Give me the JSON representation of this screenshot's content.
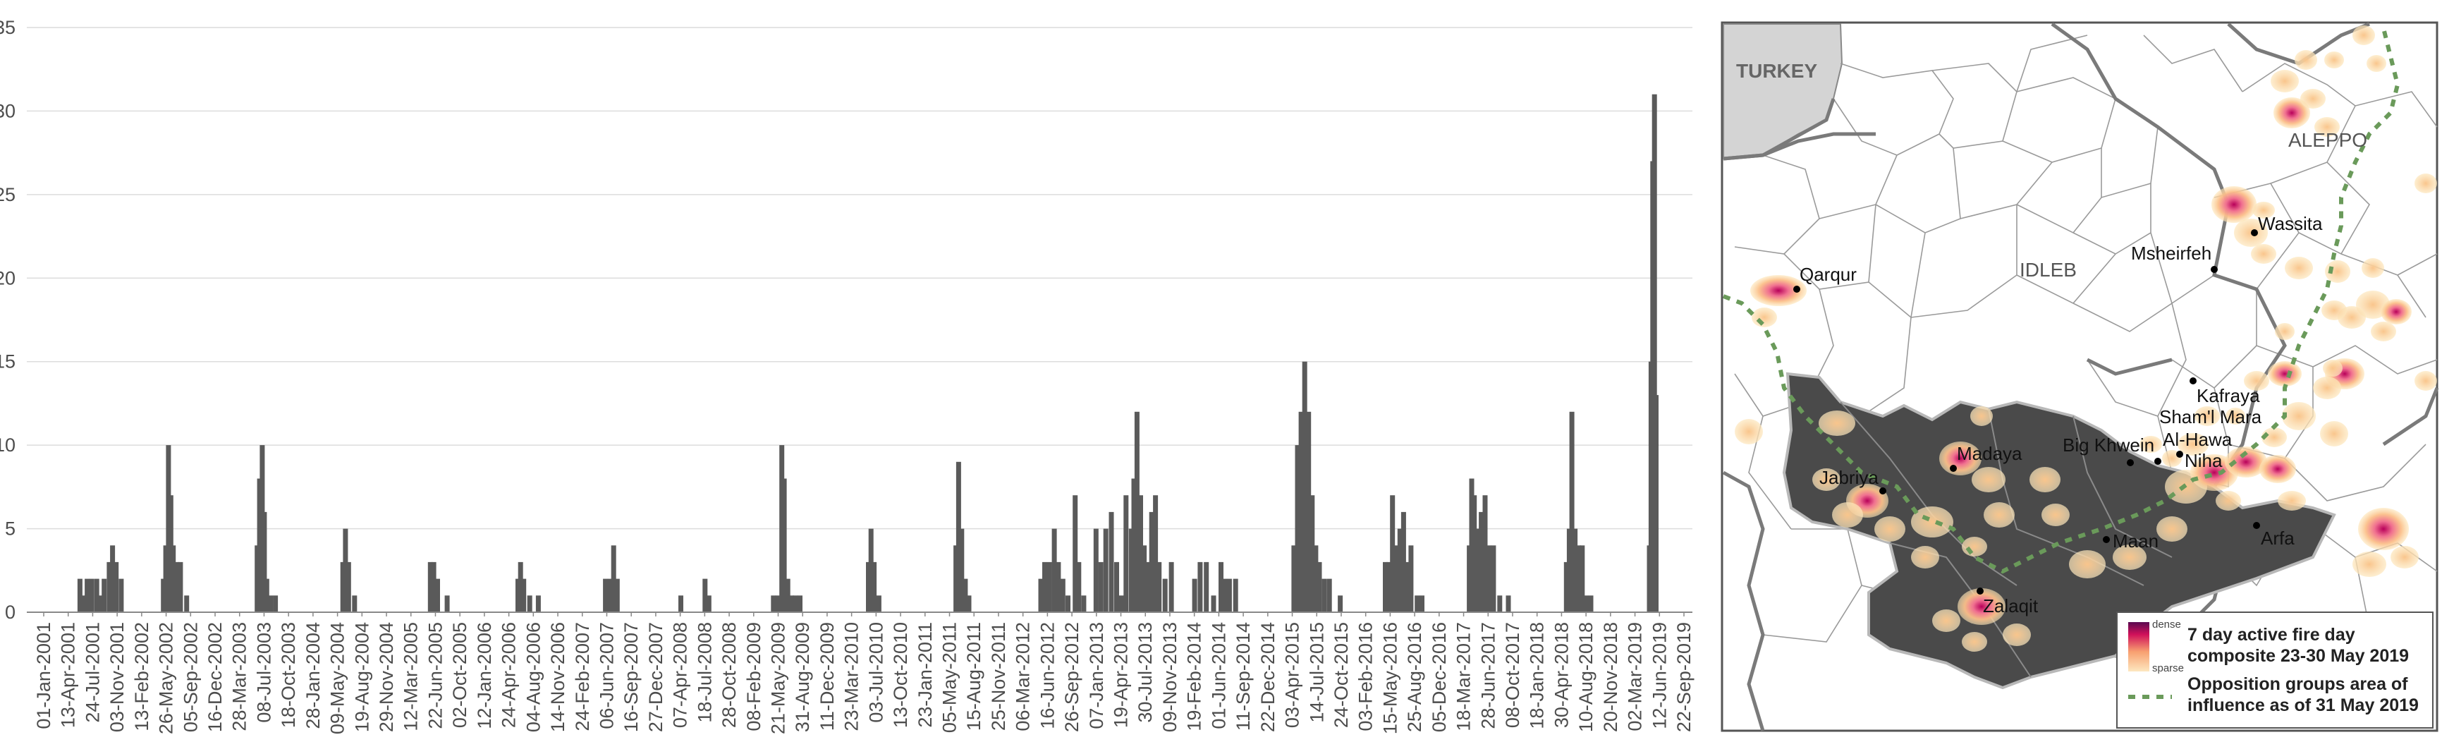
{
  "chart_data": {
    "type": "bar",
    "ylim": [
      0,
      35
    ],
    "yticks": [
      0,
      5,
      10,
      15,
      20,
      25,
      30,
      35
    ],
    "grid": true,
    "xtick_labels": [
      "01-Jan-2001",
      "13-Apr-2001",
      "24-Jul-2001",
      "03-Nov-2001",
      "13-Feb-2002",
      "26-May-2002",
      "05-Sep-2002",
      "16-Dec-2002",
      "28-Mar-2003",
      "08-Jul-2003",
      "18-Oct-2003",
      "28-Jan-2004",
      "09-May-2004",
      "19-Aug-2004",
      "29-Nov-2004",
      "12-Mar-2005",
      "22-Jun-2005",
      "02-Oct-2005",
      "12-Jan-2006",
      "24-Apr-2006",
      "04-Aug-2006",
      "14-Nov-2006",
      "24-Feb-2007",
      "06-Jun-2007",
      "16-Sep-2007",
      "27-Dec-2007",
      "07-Apr-2008",
      "18-Jul-2008",
      "28-Oct-2008",
      "08-Feb-2009",
      "21-May-2009",
      "31-Aug-2009",
      "11-Dec-2009",
      "23-Mar-2010",
      "03-Jul-2010",
      "13-Oct-2010",
      "23-Jan-2011",
      "05-May-2011",
      "15-Aug-2011",
      "25-Nov-2011",
      "06-Mar-2012",
      "16-Jun-2012",
      "26-Sep-2012",
      "07-Jan-2013",
      "19-Apr-2013",
      "30-Jul-2013",
      "09-Nov-2013",
      "19-Feb-2014",
      "01-Jun-2014",
      "11-Sep-2014",
      "22-Dec-2014",
      "03-Apr-2015",
      "14-Jul-2015",
      "24-Oct-2015",
      "03-Feb-2016",
      "15-May-2016",
      "25-Aug-2016",
      "05-Dec-2016",
      "18-Mar-2017",
      "28-Jun-2017",
      "08-Oct-2017",
      "18-Jan-2018",
      "30-Apr-2018",
      "10-Aug-2018",
      "20-Nov-2018",
      "02-Mar-2019",
      "12-Jun-2019",
      "22-Sep-2019"
    ],
    "x_start": "01-Jan-2001",
    "x_end": "22-Sep-2019",
    "bars": [
      {
        "x": "2001-06-01",
        "y": 2
      },
      {
        "x": "2001-06-15",
        "y": 1
      },
      {
        "x": "2001-07-01",
        "y": 2
      },
      {
        "x": "2001-07-20",
        "y": 2
      },
      {
        "x": "2001-08-10",
        "y": 2
      },
      {
        "x": "2001-08-25",
        "y": 1
      },
      {
        "x": "2001-09-10",
        "y": 2
      },
      {
        "x": "2001-10-01",
        "y": 3
      },
      {
        "x": "2001-10-15",
        "y": 4
      },
      {
        "x": "2001-10-30",
        "y": 3
      },
      {
        "x": "2001-11-20",
        "y": 2
      },
      {
        "x": "2002-05-15",
        "y": 2
      },
      {
        "x": "2002-05-25",
        "y": 4
      },
      {
        "x": "2002-06-05",
        "y": 10
      },
      {
        "x": "2002-06-15",
        "y": 7
      },
      {
        "x": "2002-06-25",
        "y": 4
      },
      {
        "x": "2002-07-10",
        "y": 3
      },
      {
        "x": "2002-07-25",
        "y": 3
      },
      {
        "x": "2002-08-20",
        "y": 1
      },
      {
        "x": "2003-06-10",
        "y": 4
      },
      {
        "x": "2003-06-20",
        "y": 8
      },
      {
        "x": "2003-07-01",
        "y": 10
      },
      {
        "x": "2003-07-10",
        "y": 6
      },
      {
        "x": "2003-07-20",
        "y": 2
      },
      {
        "x": "2003-08-05",
        "y": 1
      },
      {
        "x": "2003-08-25",
        "y": 1
      },
      {
        "x": "2004-06-01",
        "y": 3
      },
      {
        "x": "2004-06-12",
        "y": 5
      },
      {
        "x": "2004-06-25",
        "y": 3
      },
      {
        "x": "2004-07-20",
        "y": 1
      },
      {
        "x": "2005-06-01",
        "y": 3
      },
      {
        "x": "2005-06-15",
        "y": 3
      },
      {
        "x": "2005-07-01",
        "y": 2
      },
      {
        "x": "2005-08-10",
        "y": 1
      },
      {
        "x": "2006-06-01",
        "y": 2
      },
      {
        "x": "2006-06-12",
        "y": 3
      },
      {
        "x": "2006-06-25",
        "y": 2
      },
      {
        "x": "2006-07-20",
        "y": 1
      },
      {
        "x": "2006-08-25",
        "y": 1
      },
      {
        "x": "2007-06-01",
        "y": 2
      },
      {
        "x": "2007-06-20",
        "y": 2
      },
      {
        "x": "2007-07-05",
        "y": 4
      },
      {
        "x": "2007-07-20",
        "y": 2
      },
      {
        "x": "2008-04-10",
        "y": 1
      },
      {
        "x": "2008-07-20",
        "y": 2
      },
      {
        "x": "2008-08-05",
        "y": 1
      },
      {
        "x": "2009-05-01",
        "y": 1
      },
      {
        "x": "2009-05-20",
        "y": 1
      },
      {
        "x": "2009-06-05",
        "y": 10
      },
      {
        "x": "2009-06-15",
        "y": 8
      },
      {
        "x": "2009-06-30",
        "y": 2
      },
      {
        "x": "2009-07-15",
        "y": 1
      },
      {
        "x": "2009-08-01",
        "y": 1
      },
      {
        "x": "2009-08-20",
        "y": 1
      },
      {
        "x": "2010-06-01",
        "y": 3
      },
      {
        "x": "2010-06-12",
        "y": 5
      },
      {
        "x": "2010-06-25",
        "y": 3
      },
      {
        "x": "2010-07-15",
        "y": 1
      },
      {
        "x": "2011-06-01",
        "y": 4
      },
      {
        "x": "2011-06-12",
        "y": 9
      },
      {
        "x": "2011-06-25",
        "y": 5
      },
      {
        "x": "2011-07-10",
        "y": 2
      },
      {
        "x": "2011-07-25",
        "y": 1
      },
      {
        "x": "2012-05-20",
        "y": 2
      },
      {
        "x": "2012-06-05",
        "y": 3
      },
      {
        "x": "2012-06-25",
        "y": 3
      },
      {
        "x": "2012-07-15",
        "y": 5
      },
      {
        "x": "2012-08-01",
        "y": 3
      },
      {
        "x": "2012-08-20",
        "y": 2
      },
      {
        "x": "2012-09-10",
        "y": 1
      },
      {
        "x": "2012-10-10",
        "y": 7
      },
      {
        "x": "2012-10-25",
        "y": 3
      },
      {
        "x": "2012-11-15",
        "y": 1
      },
      {
        "x": "2013-01-05",
        "y": 5
      },
      {
        "x": "2013-01-25",
        "y": 3
      },
      {
        "x": "2013-02-15",
        "y": 5
      },
      {
        "x": "2013-03-10",
        "y": 6
      },
      {
        "x": "2013-04-01",
        "y": 3
      },
      {
        "x": "2013-04-20",
        "y": 1
      },
      {
        "x": "2013-05-10",
        "y": 7
      },
      {
        "x": "2013-06-01",
        "y": 5
      },
      {
        "x": "2013-06-12",
        "y": 8
      },
      {
        "x": "2013-06-25",
        "y": 12
      },
      {
        "x": "2013-07-10",
        "y": 7
      },
      {
        "x": "2013-07-25",
        "y": 4
      },
      {
        "x": "2013-08-10",
        "y": 3
      },
      {
        "x": "2013-08-25",
        "y": 6
      },
      {
        "x": "2013-09-10",
        "y": 7
      },
      {
        "x": "2013-09-25",
        "y": 3
      },
      {
        "x": "2013-10-20",
        "y": 2
      },
      {
        "x": "2013-11-15",
        "y": 3
      },
      {
        "x": "2014-02-20",
        "y": 2
      },
      {
        "x": "2014-03-15",
        "y": 3
      },
      {
        "x": "2014-04-10",
        "y": 3
      },
      {
        "x": "2014-05-10",
        "y": 1
      },
      {
        "x": "2014-06-10",
        "y": 3
      },
      {
        "x": "2014-06-25",
        "y": 2
      },
      {
        "x": "2014-07-15",
        "y": 2
      },
      {
        "x": "2014-08-10",
        "y": 2
      },
      {
        "x": "2015-04-10",
        "y": 4
      },
      {
        "x": "2015-04-25",
        "y": 10
      },
      {
        "x": "2015-05-10",
        "y": 12
      },
      {
        "x": "2015-05-25",
        "y": 15
      },
      {
        "x": "2015-06-10",
        "y": 12
      },
      {
        "x": "2015-06-25",
        "y": 7
      },
      {
        "x": "2015-07-10",
        "y": 4
      },
      {
        "x": "2015-07-25",
        "y": 3
      },
      {
        "x": "2015-08-15",
        "y": 2
      },
      {
        "x": "2015-09-05",
        "y": 2
      },
      {
        "x": "2015-10-20",
        "y": 1
      },
      {
        "x": "2016-04-25",
        "y": 3
      },
      {
        "x": "2016-05-10",
        "y": 3
      },
      {
        "x": "2016-05-25",
        "y": 7
      },
      {
        "x": "2016-06-10",
        "y": 4
      },
      {
        "x": "2016-06-25",
        "y": 5
      },
      {
        "x": "2016-07-10",
        "y": 6
      },
      {
        "x": "2016-07-25",
        "y": 3
      },
      {
        "x": "2016-08-10",
        "y": 4
      },
      {
        "x": "2016-09-05",
        "y": 1
      },
      {
        "x": "2016-09-25",
        "y": 1
      },
      {
        "x": "2017-04-10",
        "y": 4
      },
      {
        "x": "2017-04-20",
        "y": 8
      },
      {
        "x": "2017-05-01",
        "y": 7
      },
      {
        "x": "2017-05-15",
        "y": 5
      },
      {
        "x": "2017-05-30",
        "y": 6
      },
      {
        "x": "2017-06-15",
        "y": 7
      },
      {
        "x": "2017-07-01",
        "y": 4
      },
      {
        "x": "2017-07-20",
        "y": 4
      },
      {
        "x": "2017-08-15",
        "y": 1
      },
      {
        "x": "2017-09-20",
        "y": 1
      },
      {
        "x": "2018-05-20",
        "y": 3
      },
      {
        "x": "2018-06-01",
        "y": 5
      },
      {
        "x": "2018-06-12",
        "y": 12
      },
      {
        "x": "2018-06-25",
        "y": 5
      },
      {
        "x": "2018-07-10",
        "y": 4
      },
      {
        "x": "2018-07-25",
        "y": 4
      },
      {
        "x": "2018-08-10",
        "y": 1
      },
      {
        "x": "2018-08-30",
        "y": 1
      },
      {
        "x": "2019-05-01",
        "y": 4
      },
      {
        "x": "2019-05-08",
        "y": 15
      },
      {
        "x": "2019-05-15",
        "y": 27
      },
      {
        "x": "2019-05-22",
        "y": 31
      },
      {
        "x": "2019-05-29",
        "y": 13
      }
    ]
  },
  "map": {
    "regions": [
      {
        "label": "TURKEY"
      },
      {
        "label": "IDLEB"
      },
      {
        "label": "ALEPPO"
      }
    ],
    "places": [
      {
        "label": "Qarqur"
      },
      {
        "label": "Msheirfeh"
      },
      {
        "label": "Wassita"
      },
      {
        "label": "Kafraya"
      },
      {
        "label": "Sham'l Mara"
      },
      {
        "label": "Big Khwein"
      },
      {
        "label": "Al-Hawa"
      },
      {
        "label": "Niha"
      },
      {
        "label": "Madaya"
      },
      {
        "label": "Jabriya"
      },
      {
        "label": "Maan"
      },
      {
        "label": "Arfa"
      },
      {
        "label": "Zalaqit"
      }
    ],
    "legend": {
      "gradient_top": "dense",
      "gradient_bottom": "sparse",
      "fire_label_line1": "7 day active fire day",
      "fire_label_line2": "composite 23-30 May 2019",
      "opposition_label_line1": "Opposition groups area of",
      "opposition_label_line2": "influence as of 31 May 2019"
    },
    "colors": {
      "opposition_area": "#4a4a4a",
      "opposition_line": "#6a9a5a",
      "turkey": "#d4d4d4",
      "fire_dense": "#c0145a",
      "fire_sparse": "#fde3b0"
    }
  }
}
